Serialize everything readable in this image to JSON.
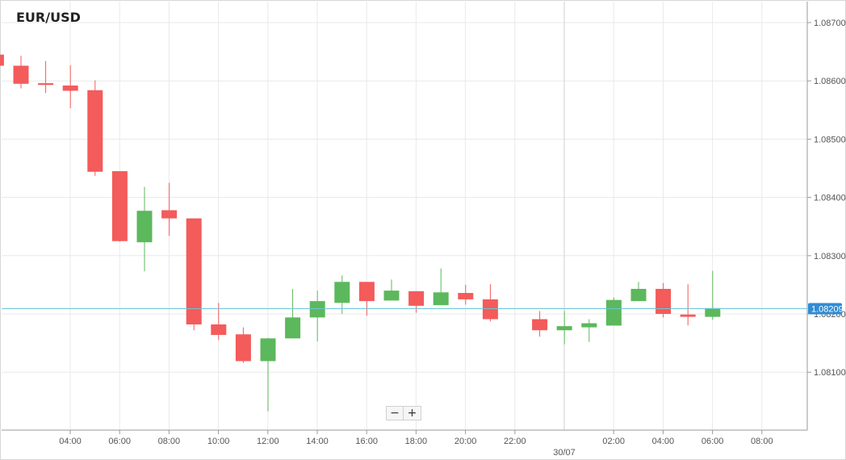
{
  "chart_data": {
    "type": "candlestick",
    "title": "EUR/USD",
    "colors": {
      "up": "#5cb85c",
      "down": "#f45b5b",
      "grid": "#e9e9e9",
      "price_line": "#6cc5d6",
      "price_tag": "#2f8cd6"
    },
    "ylim": [
      1.0802,
      1.0872
    ],
    "ytick_values": [
      1.081,
      1.082,
      1.083,
      1.084,
      1.085,
      1.086,
      1.087
    ],
    "ytick_labels": [
      "1.08100",
      "1.08200",
      "1.08300",
      "1.08400",
      "1.08500",
      "1.08600",
      "1.08700"
    ],
    "xlim": [
      1.3,
      31
    ],
    "xtick_values": [
      4,
      6,
      8,
      10,
      12,
      14,
      16,
      18,
      20,
      22,
      26,
      28,
      30,
      32
    ],
    "xtick_labels": [
      "04:00",
      "06:00",
      "08:00",
      "10:00",
      "12:00",
      "14:00",
      "16:00",
      "18:00",
      "20:00",
      "22:00",
      "02:00",
      "04:00",
      "06:00",
      "08:00"
    ],
    "day_divider": {
      "x": 24,
      "label": "30/07"
    },
    "current_price": {
      "value": 1.08209,
      "label": "1.08209"
    },
    "candles": [
      {
        "x": 2,
        "open": 1.08662,
        "high": 1.08688,
        "low": 1.08643,
        "close": 1.08647
      },
      {
        "x": 3,
        "open": 1.08645,
        "high": 1.08663,
        "low": 1.08621,
        "close": 1.08626
      },
      {
        "x": 4,
        "open": 1.08626,
        "high": 1.08643,
        "low": 1.08587,
        "close": 1.08595
      },
      {
        "x": 5,
        "open": 1.08596,
        "high": 1.08634,
        "low": 1.08579,
        "close": 1.08593
      },
      {
        "x": 6,
        "open": 1.08592,
        "high": 1.08627,
        "low": 1.08553,
        "close": 1.08583
      },
      {
        "x": 7,
        "open": 1.08584,
        "high": 1.08601,
        "low": 1.08437,
        "close": 1.08444
      },
      {
        "x": 8,
        "open": 1.08445,
        "high": 1.08445,
        "low": 1.08324,
        "close": 1.08325
      },
      {
        "x": 9,
        "open": 1.08323,
        "high": 1.08418,
        "low": 1.08273,
        "close": 1.08377
      },
      {
        "x": 10,
        "open": 1.08378,
        "high": 1.08425,
        "low": 1.08334,
        "close": 1.08364
      },
      {
        "x": 11,
        "open": 1.08364,
        "high": 1.08364,
        "low": 1.08172,
        "close": 1.08182
      },
      {
        "x": 12,
        "open": 1.08182,
        "high": 1.08219,
        "low": 1.08155,
        "close": 1.08164
      },
      {
        "x": 13,
        "open": 1.08165,
        "high": 1.08177,
        "low": 1.08116,
        "close": 1.08119
      },
      {
        "x": 14,
        "open": 1.08119,
        "high": 1.08159,
        "low": 1.08033,
        "close": 1.08158
      },
      {
        "x": 15,
        "open": 1.08158,
        "high": 1.08243,
        "low": 1.08158,
        "close": 1.08194
      },
      {
        "x": 16,
        "open": 1.08194,
        "high": 1.0824,
        "low": 1.08153,
        "close": 1.08222
      },
      {
        "x": 17,
        "open": 1.08219,
        "high": 1.08266,
        "low": 1.082,
        "close": 1.08255
      },
      {
        "x": 18,
        "open": 1.08255,
        "high": 1.08255,
        "low": 1.08197,
        "close": 1.08222
      },
      {
        "x": 19,
        "open": 1.08223,
        "high": 1.08259,
        "low": 1.08223,
        "close": 1.0824
      },
      {
        "x": 20,
        "open": 1.08239,
        "high": 1.08239,
        "low": 1.08202,
        "close": 1.08214
      },
      {
        "x": 21,
        "open": 1.08215,
        "high": 1.08278,
        "low": 1.08215,
        "close": 1.08237
      },
      {
        "x": 22,
        "open": 1.08236,
        "high": 1.0825,
        "low": 1.08216,
        "close": 1.08225
      },
      {
        "x": 23,
        "open": 1.08225,
        "high": 1.08251,
        "low": 1.08187,
        "close": 1.08191
      },
      {
        "x": 25,
        "open": 1.08191,
        "high": 1.08205,
        "low": 1.08161,
        "close": 1.08172
      },
      {
        "x": 26,
        "open": 1.08172,
        "high": 1.08205,
        "low": 1.08148,
        "close": 1.08179
      },
      {
        "x": 27,
        "open": 1.08177,
        "high": 1.08191,
        "low": 1.08152,
        "close": 1.08184
      },
      {
        "x": 28,
        "open": 1.0818,
        "high": 1.08228,
        "low": 1.0818,
        "close": 1.08224
      },
      {
        "x": 29,
        "open": 1.08222,
        "high": 1.08255,
        "low": 1.08222,
        "close": 1.08243
      },
      {
        "x": 30,
        "open": 1.08243,
        "high": 1.08253,
        "low": 1.08194,
        "close": 1.082
      },
      {
        "x": 31,
        "open": 1.08199,
        "high": 1.08251,
        "low": 1.0818,
        "close": 1.08195
      },
      {
        "x": 32,
        "open": 1.08195,
        "high": 1.08274,
        "low": 1.0819,
        "close": 1.0821
      }
    ]
  },
  "controls": {
    "zoom_out_label": "−",
    "zoom_in_label": "+"
  }
}
